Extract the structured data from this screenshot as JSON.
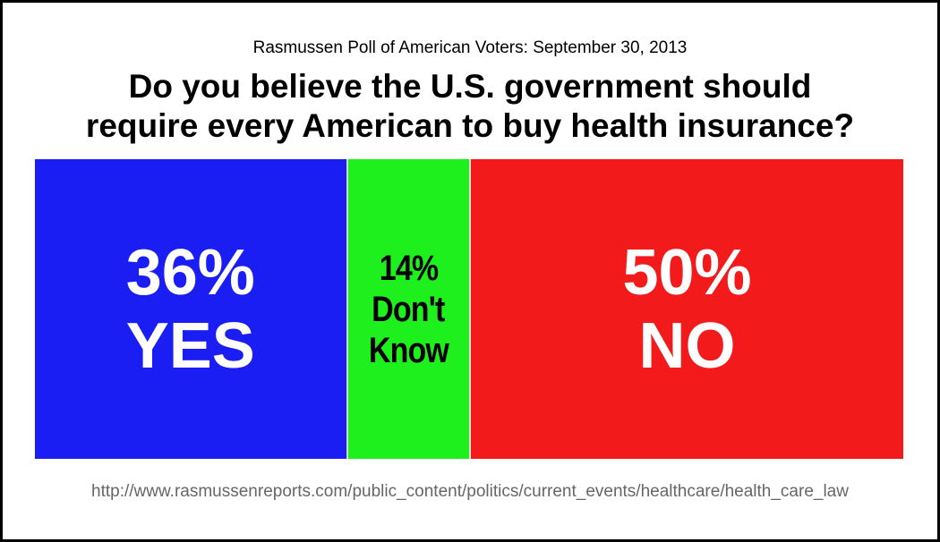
{
  "subtitle": "Rasmussen Poll of American Voters: September 30, 2013",
  "title_lines": [
    "Do you believe the U.S. government should",
    "require every American to buy health insurance?"
  ],
  "source_url": "http://www.rasmussenreports.com/public_content/politics/current_events/healthcare/health_care_law",
  "chart_data": {
    "type": "bar",
    "orientation": "horizontal-stacked",
    "title": "Do you believe the U.S. government should require every American to buy health insurance?",
    "subtitle": "Rasmussen Poll of American Voters: September 30, 2013",
    "categories": [
      "YES",
      "Don't Know",
      "NO"
    ],
    "values": [
      36,
      14,
      50
    ],
    "value_labels": [
      "36%",
      "14%",
      "50%"
    ],
    "label_lines": [
      [
        "YES"
      ],
      [
        "Don't",
        "Know"
      ],
      [
        "NO"
      ]
    ],
    "colors": [
      "#1b1ef3",
      "#1ef01e",
      "#f21a1a"
    ],
    "text_colors": [
      "#ffffff",
      "#000000",
      "#ffffff"
    ],
    "xlim": [
      0,
      100
    ],
    "grid": false,
    "legend": "none"
  }
}
